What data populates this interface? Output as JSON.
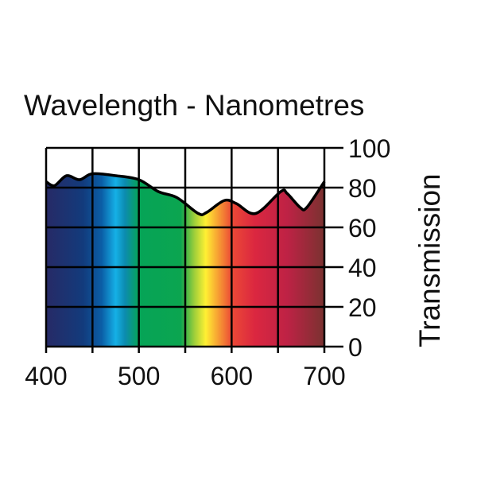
{
  "chart_data": {
    "type": "area",
    "title": "Wavelength - Nanometres",
    "xlabel": "",
    "ylabel": "Transmission",
    "xlim": [
      400,
      700
    ],
    "ylim": [
      0,
      100
    ],
    "x_ticks": [
      400,
      500,
      600,
      700
    ],
    "x_gridlines": [
      400,
      450,
      500,
      550,
      600,
      650,
      700
    ],
    "y_ticks": [
      0,
      20,
      40,
      60,
      80,
      100
    ],
    "grid": true,
    "fill": "visible-spectrum gradient",
    "x": [
      400,
      409,
      422,
      436,
      450,
      475,
      500,
      521,
      541,
      564,
      573,
      592,
      605,
      626,
      653,
      660,
      674,
      681,
      700
    ],
    "y": [
      83,
      81,
      86,
      84,
      87,
      86,
      84,
      78,
      75,
      67,
      67.5,
      73.5,
      72,
      67,
      78,
      77,
      70,
      70,
      83
    ],
    "spectrum_colors": [
      {
        "nm": 400,
        "color": "#272a66"
      },
      {
        "nm": 440,
        "color": "#123b7c"
      },
      {
        "nm": 460,
        "color": "#0b5ea6"
      },
      {
        "nm": 475,
        "color": "#15b0e6"
      },
      {
        "nm": 485,
        "color": "#0c8bb0"
      },
      {
        "nm": 500,
        "color": "#06a457"
      },
      {
        "nm": 545,
        "color": "#0ba550"
      },
      {
        "nm": 560,
        "color": "#9fcf3a"
      },
      {
        "nm": 572,
        "color": "#fff033"
      },
      {
        "nm": 585,
        "color": "#f7a233"
      },
      {
        "nm": 600,
        "color": "#ec4a36"
      },
      {
        "nm": 625,
        "color": "#db2740"
      },
      {
        "nm": 660,
        "color": "#be2245"
      },
      {
        "nm": 700,
        "color": "#7a3230"
      }
    ]
  }
}
